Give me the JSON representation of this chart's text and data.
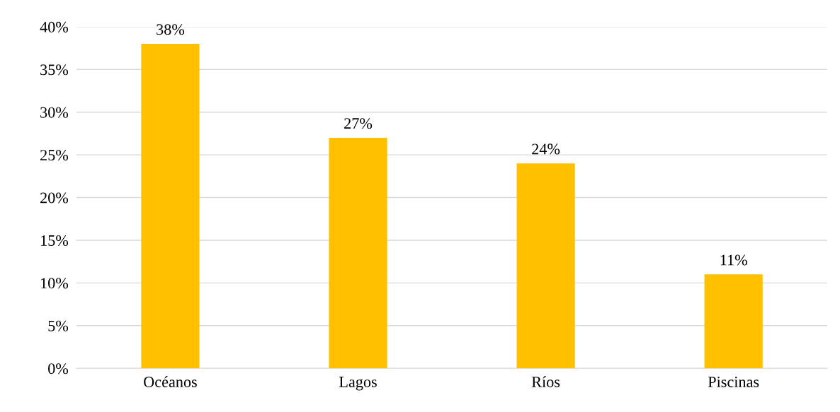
{
  "chart_data": {
    "type": "bar",
    "categories": [
      "Océanos",
      "Lagos",
      "Ríos",
      "Piscinas"
    ],
    "values": [
      38,
      27,
      24,
      11
    ],
    "value_labels": [
      "38%",
      "27%",
      "24%",
      "11%"
    ],
    "color": "#ffc000",
    "ylim": [
      0,
      40
    ],
    "yticks": [
      {
        "value": 0,
        "label": "0%"
      },
      {
        "value": 5,
        "label": "5%"
      },
      {
        "value": 10,
        "label": "10%"
      },
      {
        "value": 15,
        "label": "15%"
      },
      {
        "value": 20,
        "label": "20%"
      },
      {
        "value": 25,
        "label": "25%"
      },
      {
        "value": 30,
        "label": "30%"
      },
      {
        "value": 35,
        "label": "35%"
      },
      {
        "value": 40,
        "label": "40%"
      }
    ],
    "grid": "y",
    "legend": false
  }
}
